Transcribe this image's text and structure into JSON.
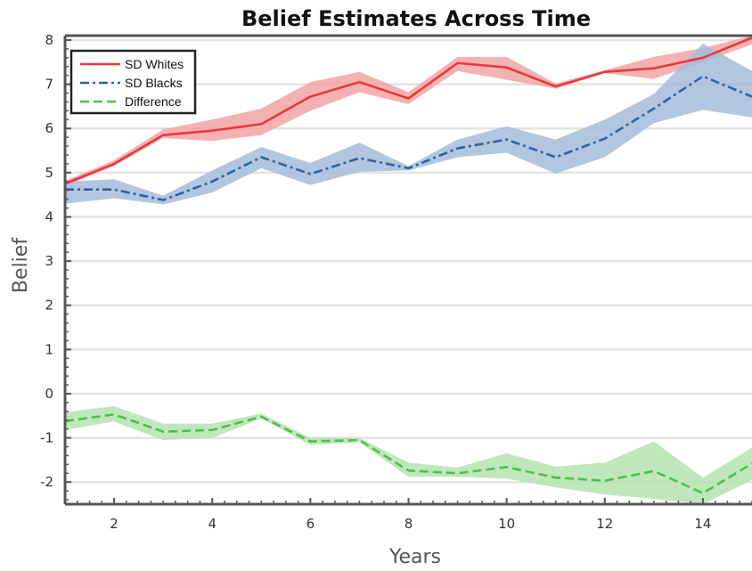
{
  "chart_data": {
    "type": "line",
    "title": "Belief Estimates Across Time",
    "xlabel": "Years",
    "ylabel": "Belief",
    "xlim": [
      1,
      15
    ],
    "ylim": [
      -2.5,
      8.1
    ],
    "xticks": [
      2,
      4,
      6,
      8,
      10,
      12,
      14
    ],
    "yticks": [
      -2,
      -1,
      0,
      1,
      2,
      3,
      4,
      5,
      6,
      7,
      8
    ],
    "grid": "horizontal",
    "legend_position": "top-left",
    "x": [
      1,
      2,
      3,
      4,
      5,
      6,
      7,
      8,
      9,
      10,
      11,
      12,
      13,
      14,
      15
    ],
    "series": [
      {
        "name": "SD Whites",
        "color": "#e8393c",
        "band_color": "#f2a5a6",
        "line_style": "solid",
        "values": [
          4.75,
          5.2,
          5.85,
          5.95,
          6.1,
          6.72,
          7.05,
          6.68,
          7.48,
          7.38,
          6.95,
          7.28,
          7.36,
          7.6,
          8.05
        ],
        "lower": [
          4.7,
          5.15,
          5.78,
          5.72,
          5.85,
          6.4,
          6.82,
          6.55,
          7.3,
          7.1,
          6.9,
          7.25,
          7.12,
          7.5,
          7.9
        ],
        "upper": [
          4.82,
          5.28,
          5.98,
          6.2,
          6.45,
          7.05,
          7.28,
          6.82,
          7.62,
          7.62,
          7.02,
          7.32,
          7.62,
          7.82,
          8.1
        ]
      },
      {
        "name": "SD Blacks",
        "color": "#2d63a0",
        "band_color": "#a6bcd9",
        "line_style": "dashdot",
        "values": [
          4.62,
          4.62,
          4.38,
          4.8,
          5.35,
          4.97,
          5.33,
          5.1,
          5.55,
          5.75,
          5.35,
          5.77,
          6.45,
          7.18,
          6.72
        ],
        "lower": [
          4.3,
          4.42,
          4.28,
          4.55,
          5.1,
          4.72,
          5.02,
          5.05,
          5.35,
          5.45,
          4.98,
          5.35,
          6.12,
          6.42,
          6.25
        ],
        "upper": [
          4.8,
          4.85,
          4.48,
          5.05,
          5.58,
          5.22,
          5.68,
          5.15,
          5.75,
          6.05,
          5.75,
          6.2,
          6.78,
          7.92,
          7.3
        ]
      },
      {
        "name": "Difference",
        "color": "#4dbf4a",
        "band_color": "#b5e2b0",
        "line_style": "dashed",
        "values": [
          -0.62,
          -0.47,
          -0.86,
          -0.82,
          -0.52,
          -1.08,
          -1.05,
          -1.74,
          -1.8,
          -1.66,
          -1.9,
          -1.97,
          -1.75,
          -2.25,
          -1.58
        ],
        "lower": [
          -0.82,
          -0.63,
          -1.05,
          -1.0,
          -0.56,
          -1.16,
          -1.1,
          -1.88,
          -1.88,
          -1.92,
          -2.12,
          -2.28,
          -2.38,
          -2.5,
          -1.95
        ],
        "upper": [
          -0.42,
          -0.28,
          -0.68,
          -0.68,
          -0.45,
          -1.0,
          -1.0,
          -1.56,
          -1.67,
          -1.35,
          -1.65,
          -1.56,
          -1.08,
          -1.9,
          -1.22
        ]
      }
    ]
  }
}
